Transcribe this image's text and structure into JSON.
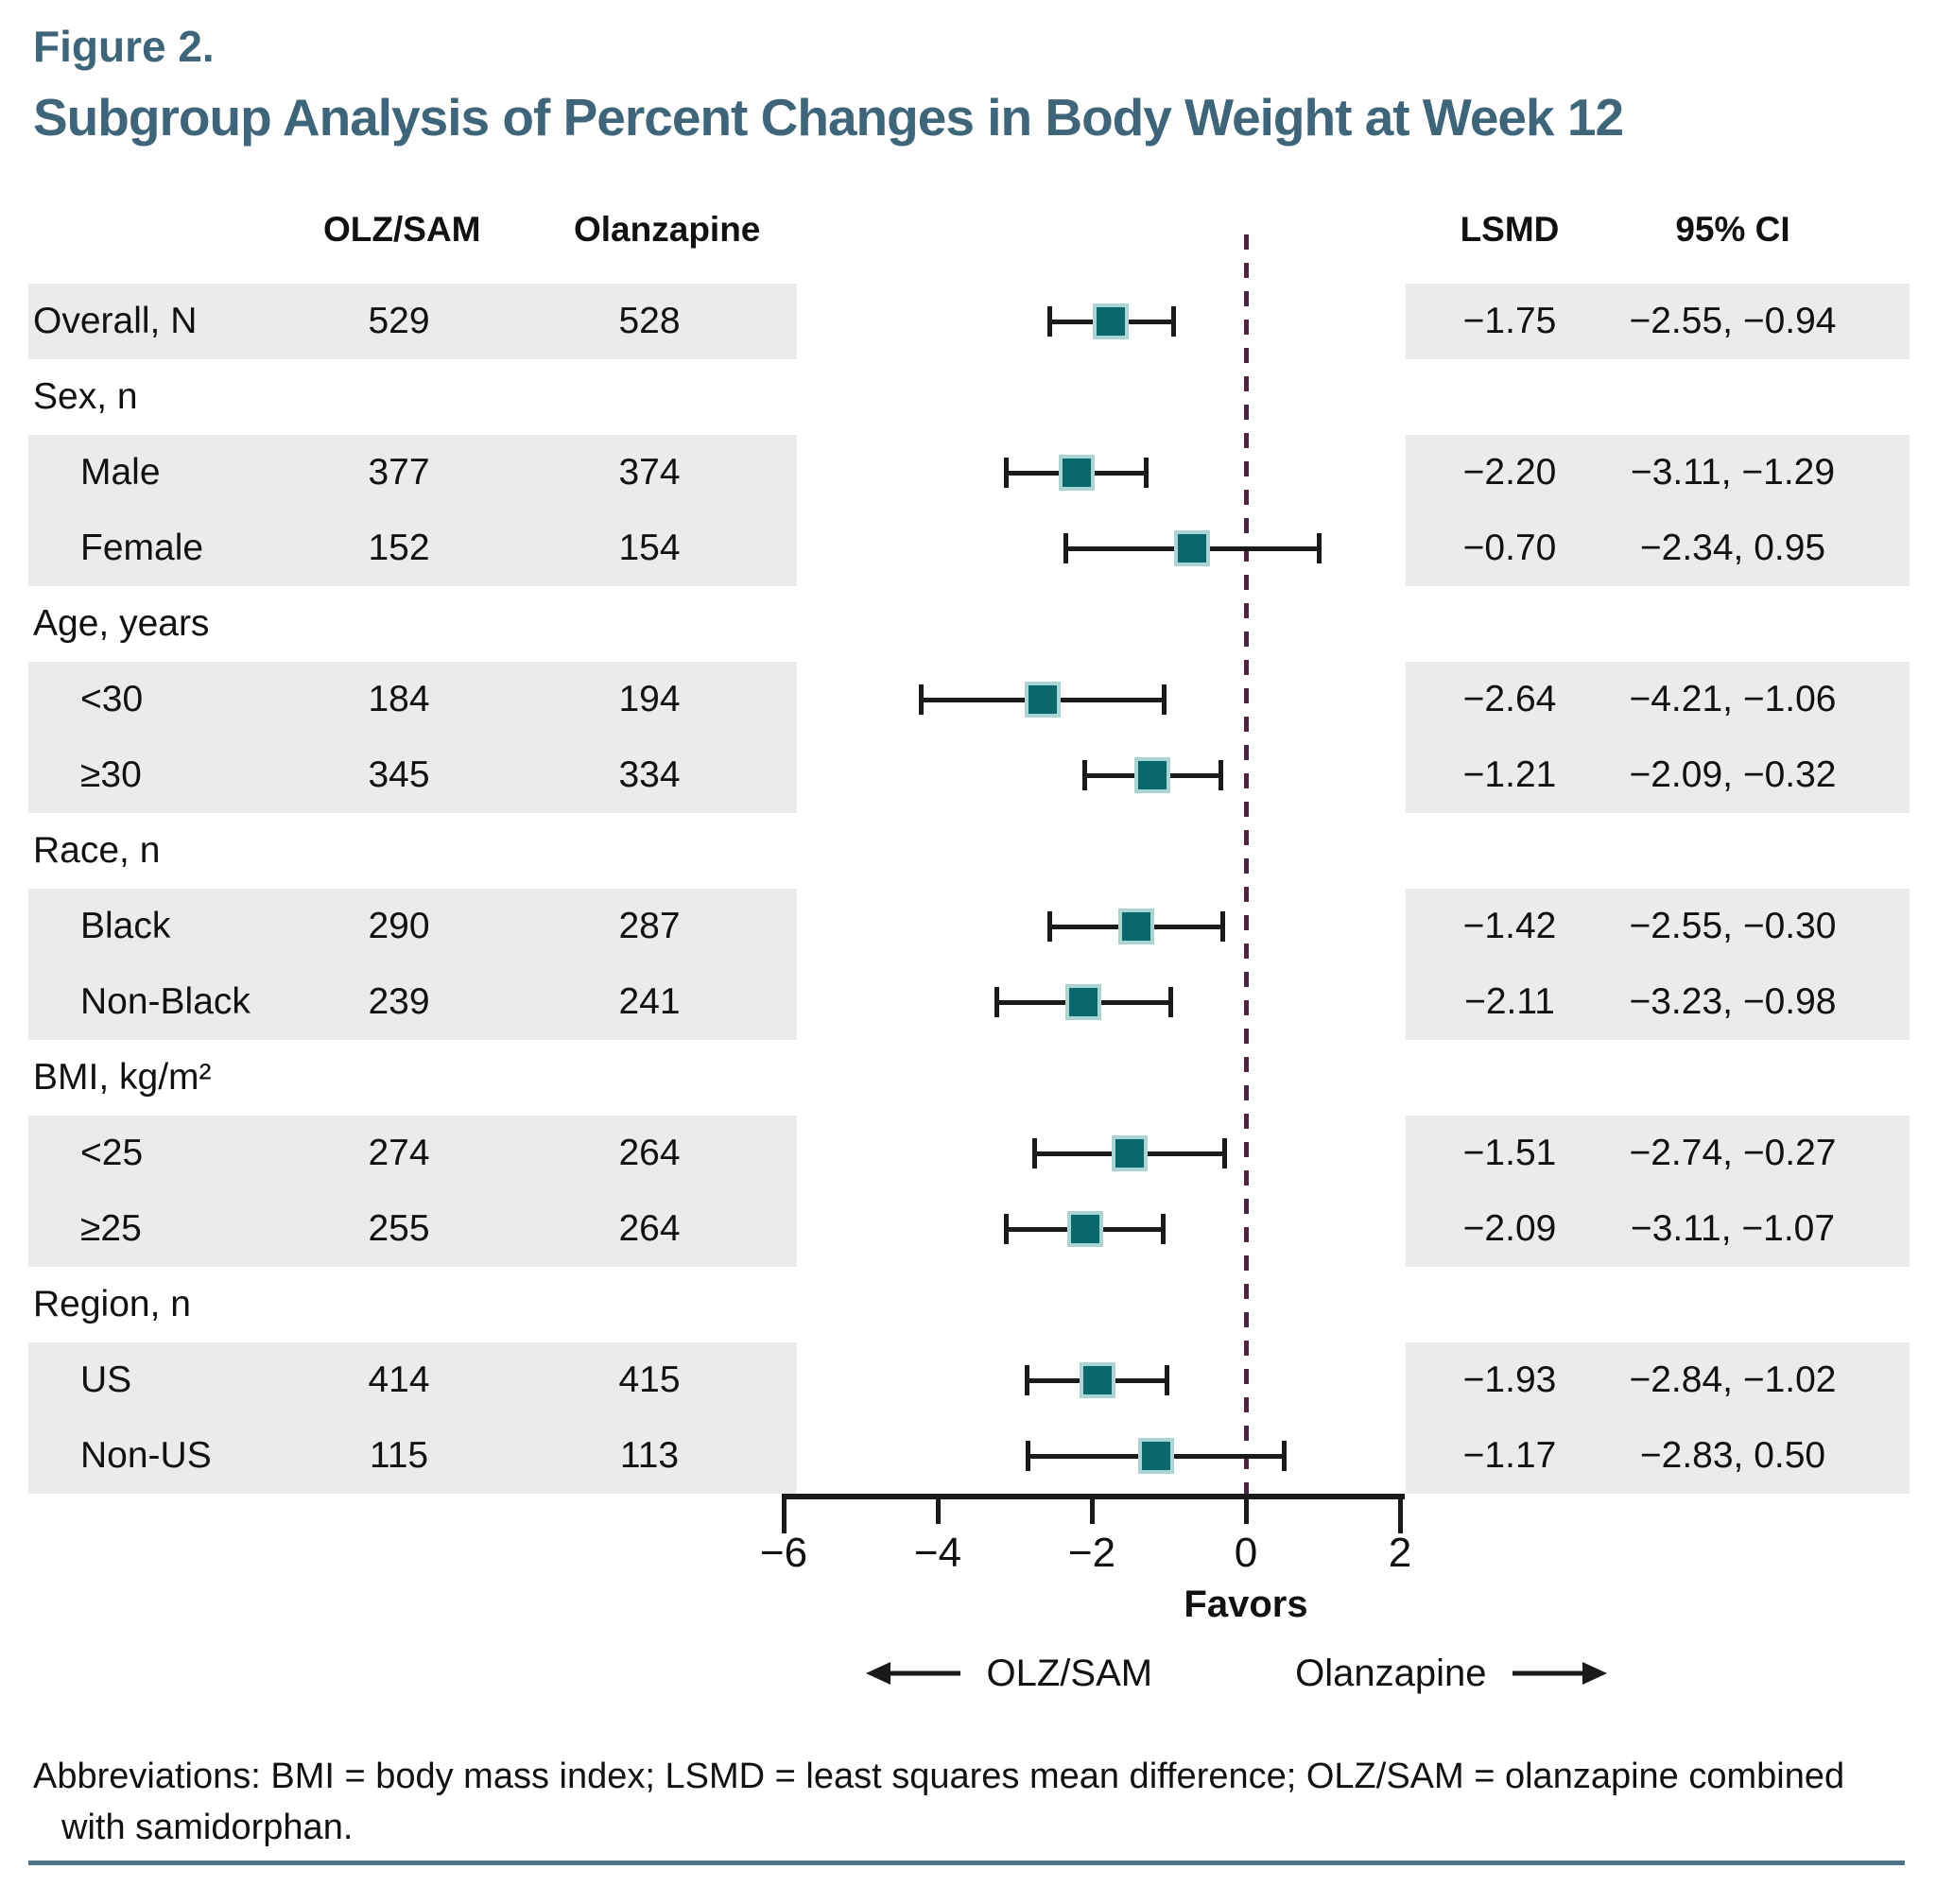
{
  "figure": {
    "label": "Figure 2.",
    "title": "Subgroup Analysis of Percent Changes in Body Weight at Week 12"
  },
  "columns": {
    "group1": "OLZ/SAM",
    "group2": "Olanzapine",
    "lsmd": "LSMD",
    "ci": "95% CI"
  },
  "chart_data": {
    "type": "forest",
    "xlabel": "",
    "axis": {
      "range": [
        -6,
        2
      ],
      "zero_line": 0,
      "ticks": [
        {
          "v": -6,
          "label": "−6"
        },
        {
          "v": -4,
          "label": "−4"
        },
        {
          "v": -2,
          "label": "−2"
        },
        {
          "v": 0,
          "label": "0"
        },
        {
          "v": 2,
          "label": "2"
        }
      ]
    },
    "favors": {
      "label": "Favors",
      "left_label": "OLZ/SAM",
      "right_label": "Olanzapine"
    },
    "rows": [
      {
        "kind": "data",
        "label": "Overall, N",
        "indent": false,
        "n1": "529",
        "n2": "528",
        "lsmd": -1.75,
        "ci": [
          -2.55,
          -0.94
        ],
        "lsmd_text": "−1.75",
        "ci_text": "−2.55, −0.94"
      },
      {
        "kind": "group",
        "label": "Sex, n"
      },
      {
        "kind": "data",
        "label": "Male",
        "indent": true,
        "n1": "377",
        "n2": "374",
        "lsmd": -2.2,
        "ci": [
          -3.11,
          -1.29
        ],
        "lsmd_text": "−2.20",
        "ci_text": "−3.11, −1.29"
      },
      {
        "kind": "data",
        "label": "Female",
        "indent": true,
        "n1": "152",
        "n2": "154",
        "lsmd": -0.7,
        "ci": [
          -2.34,
          0.95
        ],
        "lsmd_text": "−0.70",
        "ci_text": "−2.34, 0.95"
      },
      {
        "kind": "group",
        "label": "Age, years"
      },
      {
        "kind": "data",
        "label": "<30",
        "indent": true,
        "n1": "184",
        "n2": "194",
        "lsmd": -2.64,
        "ci": [
          -4.21,
          -1.06
        ],
        "lsmd_text": "−2.64",
        "ci_text": "−4.21, −1.06"
      },
      {
        "kind": "data",
        "label": "≥30",
        "indent": true,
        "n1": "345",
        "n2": "334",
        "lsmd": -1.21,
        "ci": [
          -2.09,
          -0.32
        ],
        "lsmd_text": "−1.21",
        "ci_text": "−2.09, −0.32"
      },
      {
        "kind": "group",
        "label": "Race, n"
      },
      {
        "kind": "data",
        "label": "Black",
        "indent": true,
        "n1": "290",
        "n2": "287",
        "lsmd": -1.42,
        "ci": [
          -2.55,
          -0.3
        ],
        "lsmd_text": "−1.42",
        "ci_text": "−2.55, −0.30"
      },
      {
        "kind": "data",
        "label": "Non-Black",
        "indent": true,
        "n1": "239",
        "n2": "241",
        "lsmd": -2.11,
        "ci": [
          -3.23,
          -0.98
        ],
        "lsmd_text": "−2.11",
        "ci_text": "−3.23, −0.98"
      },
      {
        "kind": "group",
        "label": "BMI, kg/m²"
      },
      {
        "kind": "data",
        "label": "<25",
        "indent": true,
        "n1": "274",
        "n2": "264",
        "lsmd": -1.51,
        "ci": [
          -2.74,
          -0.27
        ],
        "lsmd_text": "−1.51",
        "ci_text": "−2.74, −0.27"
      },
      {
        "kind": "data",
        "label": "≥25",
        "indent": true,
        "n1": "255",
        "n2": "264",
        "lsmd": -2.09,
        "ci": [
          -3.11,
          -1.07
        ],
        "lsmd_text": "−2.09",
        "ci_text": "−3.11, −1.07"
      },
      {
        "kind": "group",
        "label": "Region, n"
      },
      {
        "kind": "data",
        "label": "US",
        "indent": true,
        "n1": "414",
        "n2": "415",
        "lsmd": -1.93,
        "ci": [
          -2.84,
          -1.02
        ],
        "lsmd_text": "−1.93",
        "ci_text": "−2.84, −1.02"
      },
      {
        "kind": "data",
        "label": "Non-US",
        "indent": true,
        "n1": "115",
        "n2": "113",
        "lsmd": -1.17,
        "ci": [
          -2.83,
          0.5
        ],
        "lsmd_text": "−1.17",
        "ci_text": "−2.83, 0.50"
      }
    ]
  },
  "footnote": {
    "text": "Abbreviations: BMI = body mass index; LSMD = least squares mean difference; OLZ/SAM = olanzapine combined with samidorphan."
  },
  "colors": {
    "title": "#3e6579",
    "band": "#ebebeb",
    "marker_fill": "#0a686c",
    "marker_border": "#abd4d2",
    "zero_line": "#4f2342",
    "axis": "#1a1a1a",
    "bottom_rule": "#4e7387"
  }
}
